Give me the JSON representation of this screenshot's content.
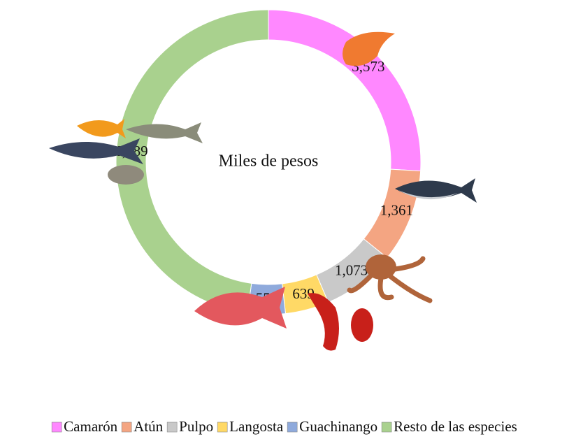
{
  "chart_data": {
    "type": "donut",
    "center_label": "Miles de pesos",
    "categories": [
      "Camarón",
      "Atún",
      "Pulpo",
      "Langosta",
      "Guachinango",
      "Resto de las especies"
    ],
    "values": [
      3573,
      1361,
      1073,
      639,
      551,
      6589
    ],
    "value_labels": [
      "3,573",
      "1,361",
      "1,073",
      "639",
      "551",
      "6,589"
    ],
    "colors": [
      "#ff88ff",
      "#f4a582",
      "#c9c9c9",
      "#ffd966",
      "#8faadc",
      "#a9d18e"
    ],
    "legend": "bottom"
  }
}
